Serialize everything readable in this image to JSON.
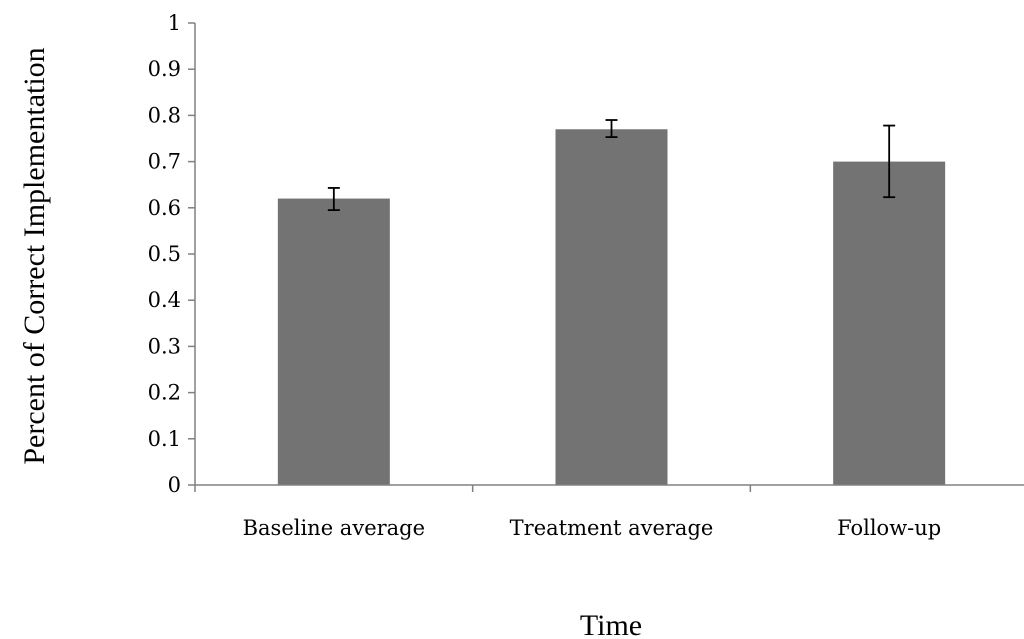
{
  "chart_data": {
    "type": "bar",
    "title": "",
    "xlabel": "Time",
    "ylabel": "Percent of Correct Implementation",
    "categories": [
      "Baseline average",
      "Treatment average",
      "Follow-up"
    ],
    "values": [
      0.62,
      0.77,
      0.7
    ],
    "error_bars": [
      {
        "low": 0.595,
        "high": 0.643
      },
      {
        "low": 0.753,
        "high": 0.79
      },
      {
        "low": 0.623,
        "high": 0.778
      }
    ],
    "ylim": [
      0,
      1
    ],
    "yticks": [
      "0",
      "0.1",
      "0.2",
      "0.3",
      "0.4",
      "0.5",
      "0.6",
      "0.7",
      "0.8",
      "0.9",
      "1"
    ],
    "grid": false,
    "legend": "none",
    "bar_color": "#737373",
    "axis_color": "#808080"
  }
}
